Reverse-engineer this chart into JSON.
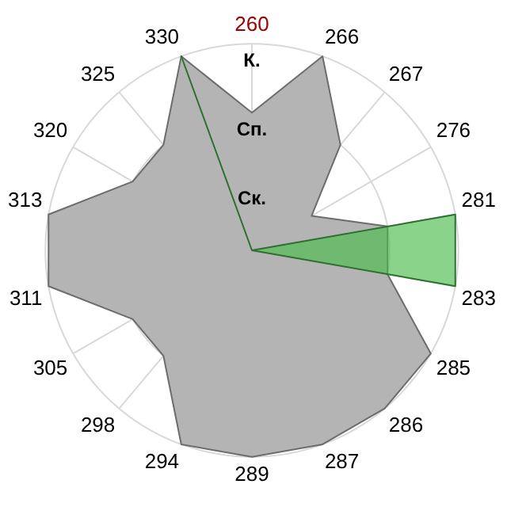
{
  "chart_data": {
    "type": "radar",
    "categories": [
      "260",
      "266",
      "267",
      "276",
      "281",
      "283",
      "285",
      "286",
      "287",
      "289",
      "294",
      "298",
      "305",
      "311",
      "313",
      "320",
      "325",
      "330"
    ],
    "series": [
      {
        "color": "#b4b4b4",
        "values": [
          2,
          3,
          2,
          1,
          2,
          2,
          3,
          3,
          3,
          3,
          3,
          2,
          2,
          3,
          3,
          2,
          2,
          3
        ]
      },
      {
        "color": "#4cbb4c",
        "values": [
          0,
          0,
          0,
          0,
          3,
          3,
          0,
          0,
          0,
          0,
          0,
          0,
          0,
          0,
          0,
          0,
          0,
          3
        ]
      }
    ],
    "ylim": [
      0,
      3
    ],
    "yticks": [
      {
        "value": 1,
        "label": "Ск."
      },
      {
        "value": 2,
        "label": "Сп."
      },
      {
        "value": 3,
        "label": "К."
      }
    ],
    "grid": true,
    "legend": false,
    "marker": "none"
  }
}
